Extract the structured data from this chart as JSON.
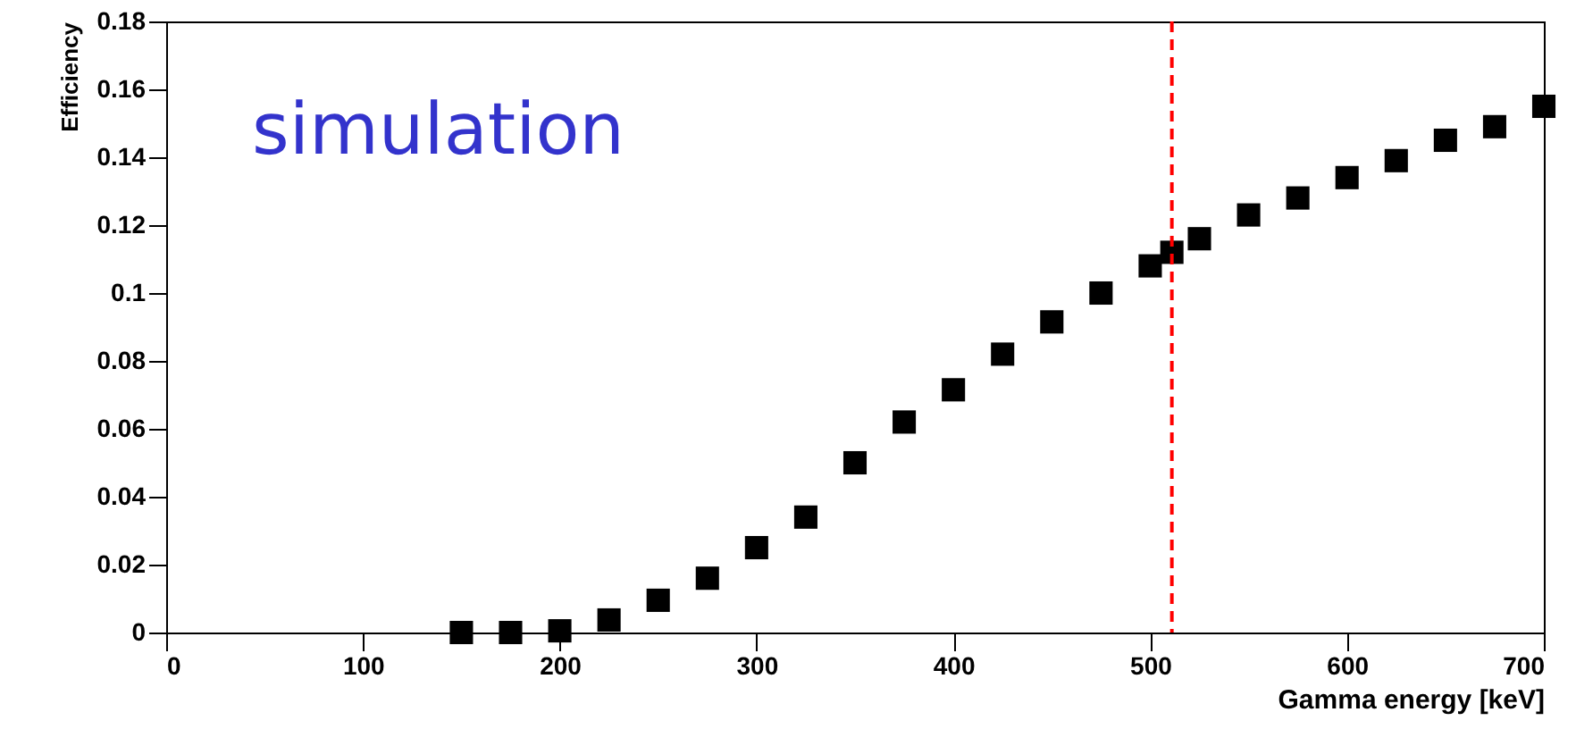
{
  "chart_data": {
    "type": "scatter",
    "xlabel": "Gamma energy [keV]",
    "ylabel": "Efficiency",
    "annotations": [
      "simulation"
    ],
    "x": [
      150,
      175,
      200,
      225,
      250,
      275,
      300,
      325,
      350,
      375,
      400,
      425,
      450,
      475,
      500,
      511,
      525,
      550,
      575,
      600,
      625,
      650,
      675,
      700
    ],
    "series": [
      {
        "color": "#000000",
        "values": [
          0,
          0,
          0.0005,
          0.0037,
          0.0095,
          0.016,
          0.025,
          0.034,
          0.05,
          0.062,
          0.0715,
          0.082,
          0.0915,
          0.1,
          0.108,
          0.112,
          0.116,
          0.123,
          0.128,
          0.134,
          0.139,
          0.145,
          0.149,
          0.155
        ]
      }
    ],
    "marker": "square",
    "xlim": [
      0,
      700
    ],
    "xticks": [
      0,
      100,
      200,
      300,
      400,
      500,
      600,
      700
    ],
    "ylim": [
      0,
      0.18
    ],
    "yticks": [
      0,
      0.02,
      0.04,
      0.06,
      0.08,
      0.1,
      0.12,
      0.14,
      0.16,
      0.18
    ],
    "ref_lines": [
      {
        "axis": "x",
        "value": 511,
        "color": "#ff0000",
        "line_style": "dashed"
      }
    ],
    "grid": false
  }
}
